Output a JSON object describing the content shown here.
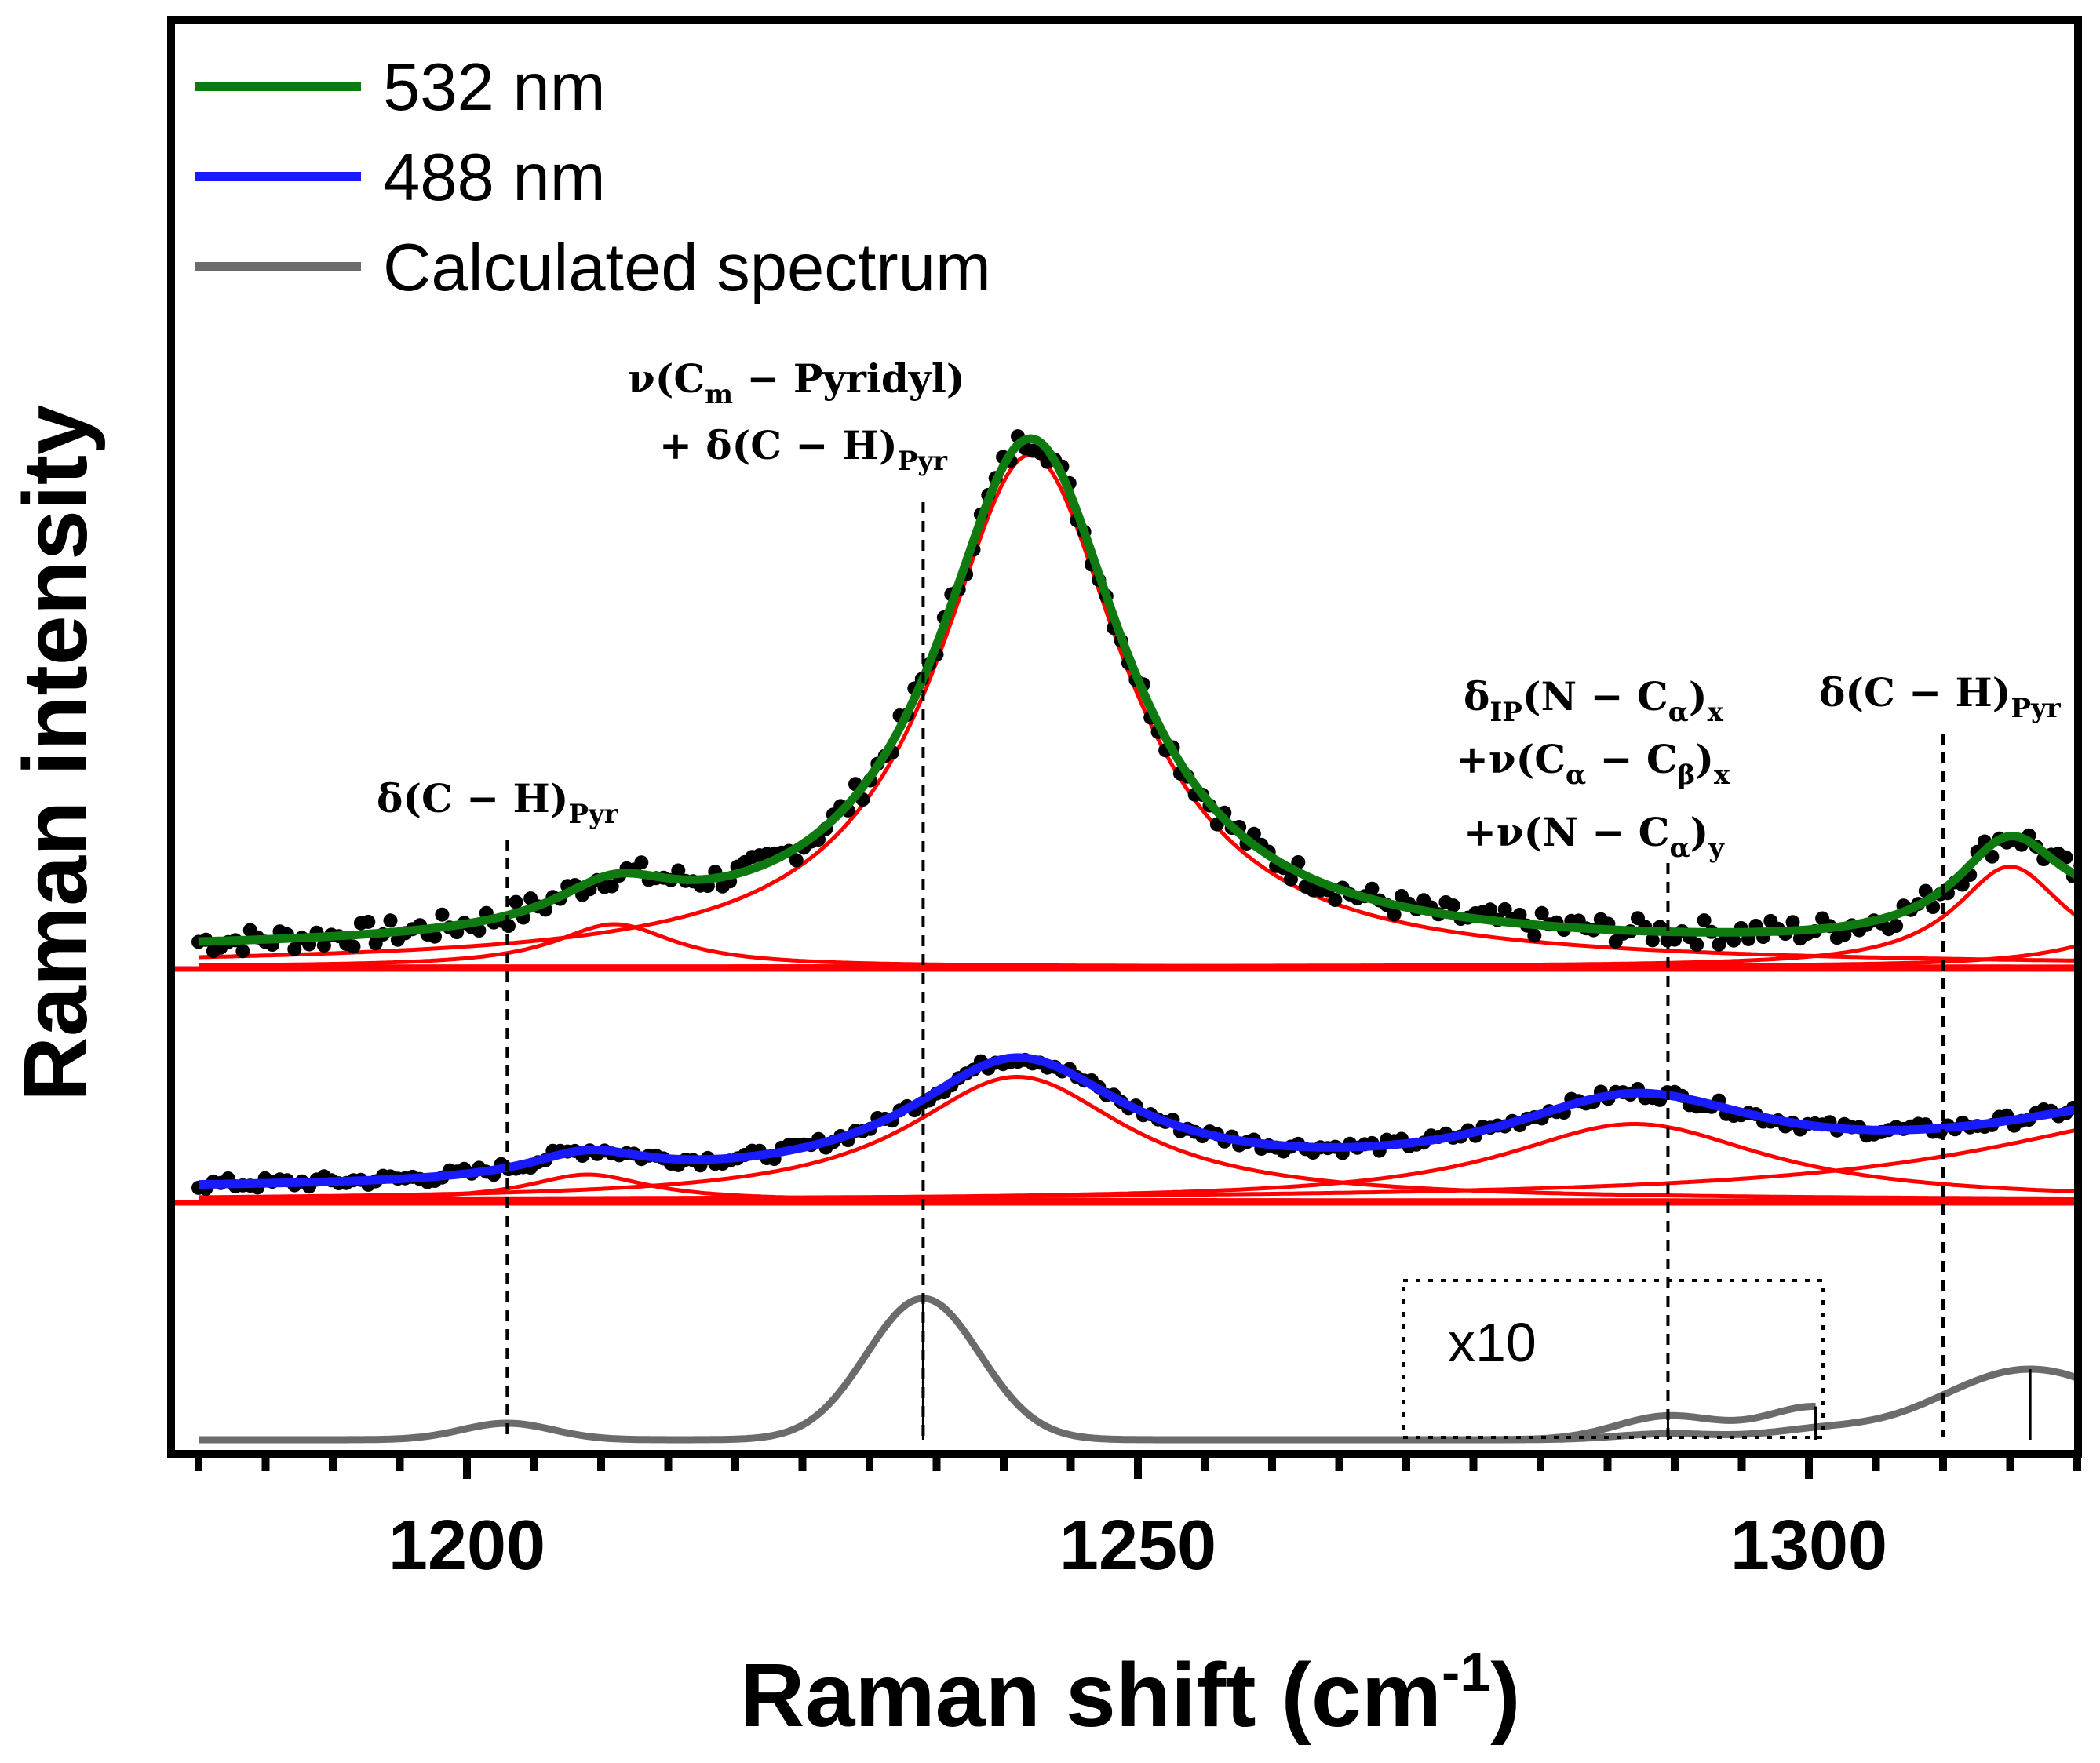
{
  "chart_data": {
    "type": "line",
    "xlabel": "Raman shift (cm",
    "xlabel_sup": "-1",
    "xlabel_close": ")",
    "ylabel": "Raman intensity",
    "xlim": [
      1180,
      1321
    ],
    "x_ticks": [
      "1200",
      "1250",
      "1300"
    ],
    "x_tick_values": [
      1200,
      1250,
      1300
    ],
    "legend": {
      "position": "top-left",
      "entries": [
        {
          "label": "532 nm",
          "color": "#0f7a0f"
        },
        {
          "label": "488 nm",
          "color": "#1a1aff"
        },
        {
          "label": "Calculated spectrum",
          "color": "#6b6b6b"
        }
      ]
    },
    "colors": {
      "green": "#0f7a0f",
      "blue": "#1a1aff",
      "red": "#ff0000",
      "gray": "#6b6b6b",
      "dots": "#000000"
    },
    "series": [
      {
        "name": "532 nm",
        "baseline": 0.0,
        "offset": 3.35,
        "peaks": [
          {
            "center": 1211,
            "height": 0.36,
            "width": 5.5
          },
          {
            "center": 1242,
            "height": 4.35,
            "width": 8.5
          },
          {
            "center": 1315,
            "height": 0.85,
            "width": 5.0
          },
          {
            "center": 1325,
            "height": 0.3,
            "width": 6.0
          }
        ]
      },
      {
        "name": "488 nm",
        "offset": 1.8,
        "peaks": [
          {
            "center": 1209,
            "height": 0.22,
            "width": 5.5
          },
          {
            "center": 1241,
            "height": 1.05,
            "width": 10.0
          },
          {
            "center": 1287,
            "height": 0.65,
            "width": 12.0
          },
          {
            "center": 1330,
            "height": 0.75,
            "width": 20.0
          }
        ]
      },
      {
        "name": "Calculated spectrum",
        "offset": 0.0,
        "peaks": [
          {
            "center": 1203,
            "height": 0.14,
            "width": 4.0
          },
          {
            "center": 1234,
            "height": 1.2,
            "width": 5.0
          },
          {
            "center": 1289.5,
            "height": 0.05,
            "width": 4.5
          },
          {
            "center": 1300.5,
            "height": 0.07,
            "width": 4.5
          },
          {
            "center": 1316.5,
            "height": 0.6,
            "width": 8.0
          }
        ],
        "sticks": [
          1234,
          1289.5,
          1300.5,
          1316.5
        ]
      }
    ],
    "inset": {
      "label": "x10",
      "x_range": [
        1270,
        1301
      ]
    },
    "annotations": [
      {
        "name": "annotation-dch-left",
        "lines": [
          "δ(C − H)_Pyr"
        ],
        "x": 1203
      },
      {
        "name": "annotation-nu-cm-pyridyl",
        "lines": [
          "ν(C_m − Pyridyl)",
          "+ δ(C − H)_Pyr"
        ],
        "x": 1234
      },
      {
        "name": "annotation-delta-ip",
        "lines": [
          "δ_IP(N − C_α)_x",
          "+ν(C_α − C_β)_x",
          "+ν(N − C_α)_y"
        ],
        "x": 1289.5
      },
      {
        "name": "annotation-dch-right",
        "lines": [
          "δ(C − H)_Pyr"
        ],
        "x": 1310
      }
    ]
  },
  "legend_labels": {
    "l1": "532 nm",
    "l2": "488 nm",
    "l3": "Calculated spectrum"
  },
  "annotation_text": {
    "a1": "δ(C − H)",
    "a1_sub": "Pyr",
    "a2_line1": "ν(C",
    "a2_line1_sub": "m",
    "a2_line1_rest": " − Pyridyl)",
    "a2_line2": "+ δ(C − H)",
    "a2_line2_sub": "Pyr",
    "a3_line1": "δ",
    "a3_line1_sub1": "IP",
    "a3_line1_mid": "(N − C",
    "a3_line1_sub2": "α",
    "a3_line1_end": ")",
    "a3_line1_sub3": "x",
    "a3_line2": "+ν(C",
    "a3_line2_sub1": "α",
    "a3_line2_mid": " − C",
    "a3_line2_sub2": "β",
    "a3_line2_end": ")",
    "a3_line2_sub3": "x",
    "a3_line3": "+ν(N − C",
    "a3_line3_sub1": "α",
    "a3_line3_end": ")",
    "a3_line3_sub2": "y",
    "a4": "δ(C − H)",
    "a4_sub": "Pyr",
    "inset": "x10"
  }
}
